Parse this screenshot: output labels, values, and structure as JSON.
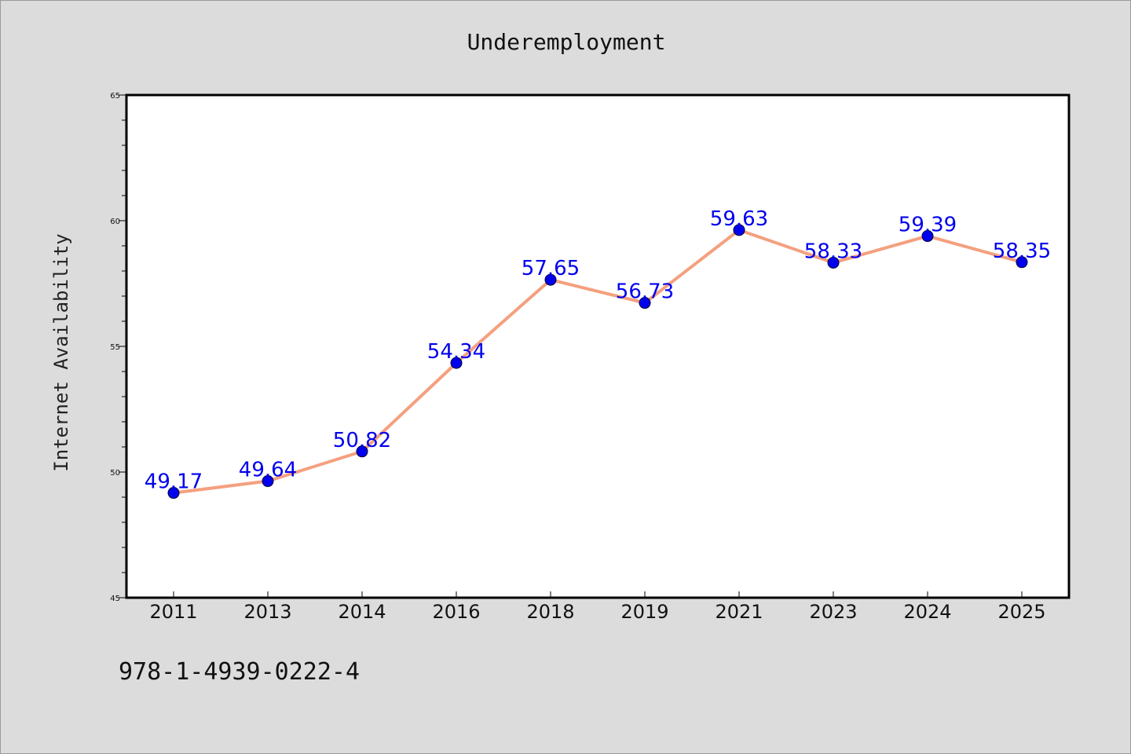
{
  "chart_data": {
    "type": "line",
    "title": "Underemployment",
    "xlabel": "",
    "ylabel": "Internet Availability",
    "categories": [
      "2011",
      "2013",
      "2014",
      "2016",
      "2018",
      "2019",
      "2021",
      "2023",
      "2024",
      "2025"
    ],
    "series": [
      {
        "values": [
          49.17,
          49.64,
          50.82,
          54.34,
          57.65,
          56.73,
          59.63,
          58.33,
          59.39,
          58.35
        ]
      }
    ],
    "ylim": [
      45,
      65
    ],
    "yticks": [
      45,
      50,
      55,
      60,
      65
    ],
    "grid": false,
    "legend": "none",
    "line_color": "#f4a07f",
    "marker_color": "#0000ee",
    "label_color": "#0000ee"
  },
  "footer": {
    "isbn": "978-1-4939-0222-4"
  },
  "colors": {
    "background": "#dcdcdc",
    "plot_area": "#ffffff",
    "axis": "#000000"
  }
}
